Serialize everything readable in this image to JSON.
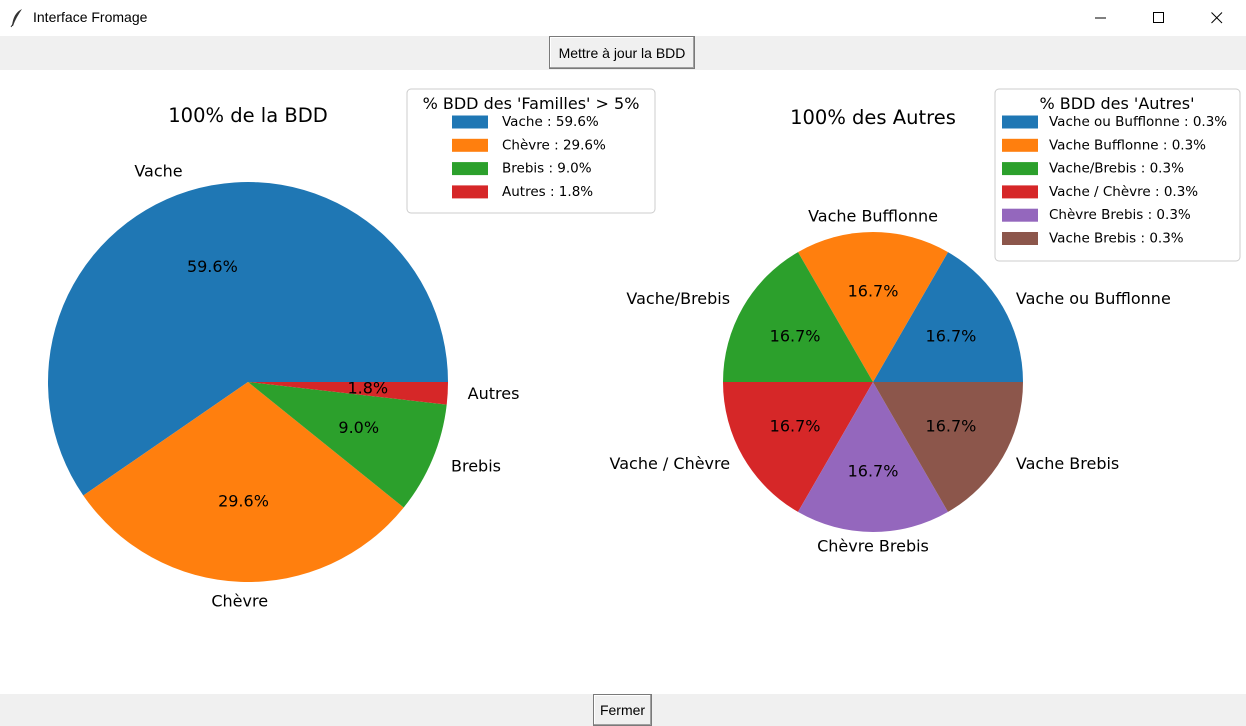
{
  "window": {
    "title": "Interface Fromage",
    "icons": [
      "feather-icon",
      "minimize-icon",
      "maximize-icon",
      "close-icon"
    ]
  },
  "toolbar": {
    "update_label": "Mettre à jour la BDD"
  },
  "footer": {
    "close_label": "Fermer"
  },
  "chart_data": [
    {
      "type": "pie",
      "title": "100% de la BDD",
      "categories": [
        "Vache",
        "Chèvre",
        "Brebis",
        "Autres"
      ],
      "values": [
        59.6,
        29.6,
        9.0,
        1.8
      ],
      "pct_labels": [
        "59.6%",
        "29.6%",
        "9.0%",
        "1.8%"
      ],
      "colors": [
        "#1f77b4",
        "#ff7f0e",
        "#2ca02c",
        "#d62728"
      ],
      "legend": {
        "title": "% BDD des 'Familles' > 5%",
        "placement": "top-right",
        "entries": [
          "Vache : 59.6%",
          "Chèvre : 29.6%",
          "Brebis : 9.0%",
          "Autres : 1.8%"
        ]
      }
    },
    {
      "type": "pie",
      "title": "100% des Autres",
      "categories": [
        "Vache ou Bufflonne",
        "Vache Bufflonne",
        "Vache/Brebis",
        "Vache / Chèvre",
        "Chèvre Brebis",
        "Vache Brebis"
      ],
      "values": [
        16.7,
        16.7,
        16.7,
        16.7,
        16.7,
        16.7
      ],
      "pct_labels": [
        "16.7%",
        "16.7%",
        "16.7%",
        "16.7%",
        "16.7%",
        "16.7%"
      ],
      "colors": [
        "#1f77b4",
        "#ff7f0e",
        "#2ca02c",
        "#d62728",
        "#9467bd",
        "#8c564b"
      ],
      "legend": {
        "title": "% BDD des 'Autres'",
        "placement": "top-right",
        "entries": [
          "Vache ou Bufflonne : 0.3%",
          "Vache Bufflonne : 0.3%",
          "Vache/Brebis : 0.3%",
          "Vache / Chèvre : 0.3%",
          "Chèvre Brebis : 0.3%",
          "Vache Brebis : 0.3%"
        ]
      }
    }
  ]
}
